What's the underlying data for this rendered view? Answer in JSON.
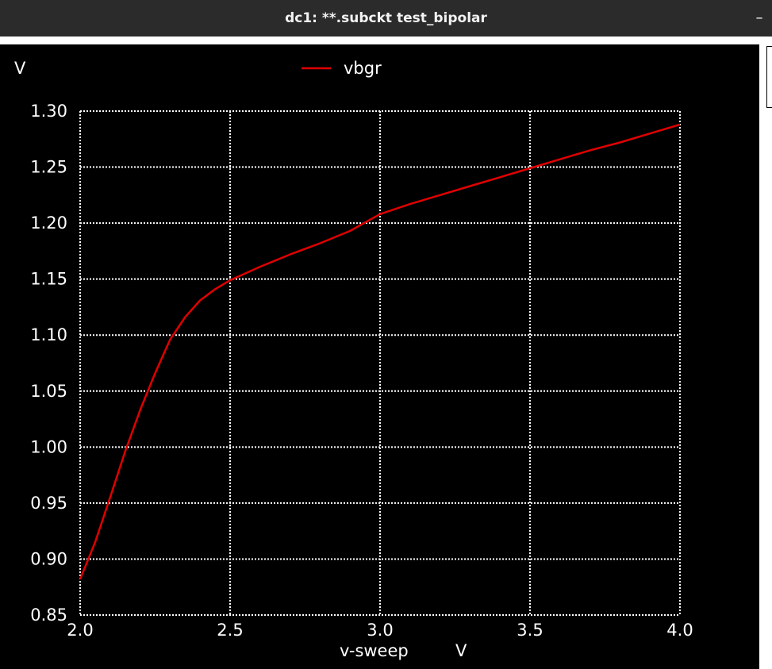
{
  "window": {
    "title": "dc1: **.subckt test_bipolar",
    "minimize_label": "–"
  },
  "chart_data": {
    "type": "line",
    "y_unit": "V",
    "xlabel": "v-sweep",
    "x_unit": "V",
    "xlim": [
      2.0,
      4.0
    ],
    "ylim": [
      0.85,
      1.3
    ],
    "x_ticks": [
      "2.0",
      "2.5",
      "3.0",
      "3.5",
      "4.0"
    ],
    "y_ticks": [
      "1.30",
      "1.25",
      "1.20",
      "1.15",
      "1.10",
      "1.05",
      "1.00",
      "0.95",
      "0.90",
      "0.85"
    ],
    "grid": true,
    "legend_position": "top-center",
    "colors": {
      "background": "#000000",
      "grid": "#ffffff",
      "text": "#ffffff",
      "series": "#e00000"
    },
    "series": [
      {
        "name": "vbgr",
        "x": [
          2.0,
          2.05,
          2.1,
          2.15,
          2.2,
          2.25,
          2.3,
          2.35,
          2.4,
          2.45,
          2.5,
          2.6,
          2.7,
          2.8,
          2.9,
          3.0,
          3.1,
          3.2,
          3.3,
          3.4,
          3.5,
          3.6,
          3.7,
          3.8,
          3.9,
          4.0
        ],
        "y": [
          0.882,
          0.915,
          0.955,
          0.996,
          1.033,
          1.066,
          1.096,
          1.116,
          1.131,
          1.141,
          1.149,
          1.161,
          1.172,
          1.182,
          1.193,
          1.208,
          1.217,
          1.225,
          1.233,
          1.241,
          1.249,
          1.257,
          1.265,
          1.272,
          1.28,
          1.288
        ]
      }
    ]
  }
}
